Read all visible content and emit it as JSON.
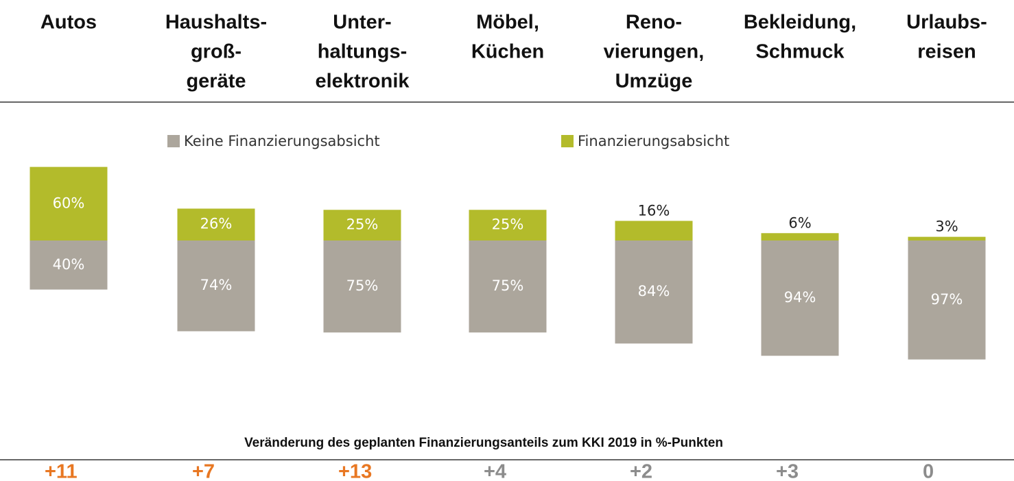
{
  "chart_data": {
    "type": "diverging-stacked-bar",
    "categories": [
      [
        "Autos"
      ],
      [
        "Haushalts-",
        "groß-",
        "geräte"
      ],
      [
        "Unter-",
        "haltungs-",
        "elektronik"
      ],
      [
        "Möbel,",
        "Küchen"
      ],
      [
        "Reno-",
        "vierungen,",
        "Umzüge"
      ],
      [
        "Bekleidung,",
        "Schmuck"
      ],
      [
        "Urlaubs-",
        "reisen"
      ]
    ],
    "series": [
      {
        "name": "Keine Finanzierungsabsicht",
        "color": "#aca69c",
        "values": [
          40,
          74,
          75,
          75,
          84,
          94,
          97
        ],
        "value_labels": [
          "40%",
          "74%",
          "75%",
          "75%",
          "84%",
          "94%",
          "97%"
        ]
      },
      {
        "name": "Finanzierungsabsicht",
        "color": "#b3bb2b",
        "values": [
          60,
          26,
          25,
          25,
          16,
          6,
          3
        ],
        "value_labels": [
          "60%",
          "26%",
          "25%",
          "25%",
          "16%",
          "6%",
          "3%"
        ]
      }
    ],
    "change": {
      "title": "Veränderung des geplanten Finanzierungsanteils zum KKI 2019  in %-Punkten",
      "values": [
        11,
        7,
        13,
        4,
        2,
        3,
        0
      ],
      "value_labels": [
        "+11",
        "+7",
        "+13",
        "+4",
        "+2",
        "+3",
        "0"
      ],
      "colors": [
        "#e87722",
        "#e87722",
        "#e87722",
        "#8c8c8c",
        "#8c8c8c",
        "#8c8c8c",
        "#8c8c8c"
      ]
    }
  }
}
